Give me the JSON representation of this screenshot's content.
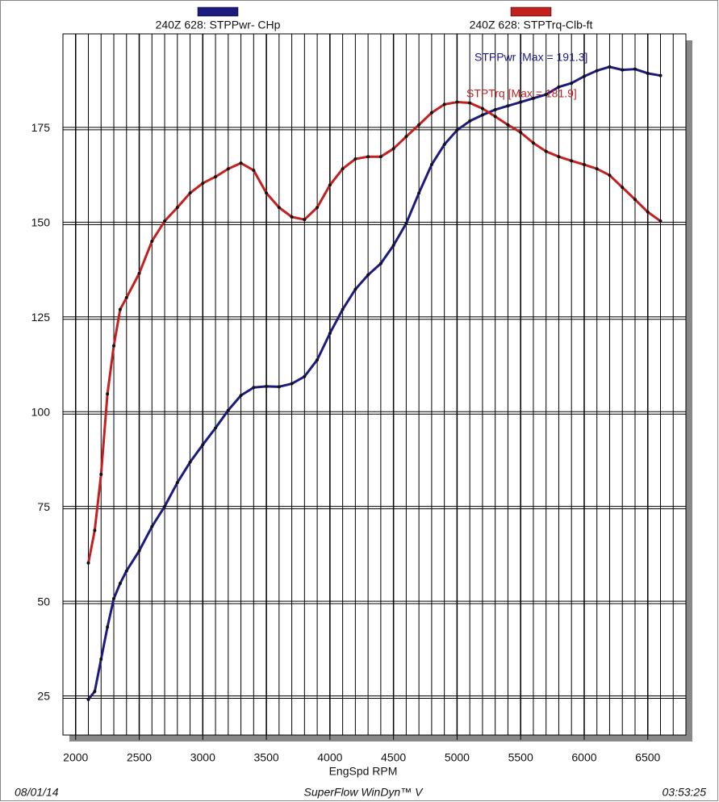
{
  "chart_data": {
    "type": "line",
    "x_label": "EngSpd  RPM",
    "xlim": [
      1900,
      6800
    ],
    "xticks": [
      2000,
      2500,
      3000,
      3500,
      4000,
      4500,
      5000,
      5500,
      6000,
      6500
    ],
    "x_grid_step": 100,
    "ylim": [
      15,
      200
    ],
    "yticks": [
      25,
      50,
      75,
      100,
      125,
      150,
      175
    ],
    "grid": true,
    "x": [
      2100,
      2150,
      2200,
      2250,
      2300,
      2350,
      2400,
      2500,
      2600,
      2700,
      2800,
      2900,
      3000,
      3100,
      3200,
      3300,
      3400,
      3500,
      3600,
      3700,
      3800,
      3900,
      4000,
      4100,
      4200,
      4300,
      4400,
      4500,
      4600,
      4700,
      4800,
      4900,
      5000,
      5100,
      5200,
      5300,
      5400,
      5500,
      5600,
      5700,
      5800,
      5900,
      6000,
      6100,
      6200,
      6300,
      6400,
      6500,
      6600
    ],
    "series": [
      {
        "name": "240Z 628: STPPwr- CHp",
        "color": "#1c1c80",
        "annotation": "STPPwr [Max = 191.3]",
        "values": [
          24.4,
          26.5,
          35,
          43.5,
          51,
          55,
          58.3,
          63.6,
          70,
          75.3,
          81.6,
          87,
          91.6,
          96,
          100.7,
          104.6,
          106.7,
          107,
          106.9,
          107.7,
          109.6,
          114,
          121,
          127.3,
          132.6,
          136.4,
          139.4,
          144.2,
          150,
          158,
          165.5,
          170.8,
          174.6,
          177,
          178.6,
          180,
          181,
          182,
          183,
          184,
          186,
          187,
          188.8,
          190.3,
          191.3,
          190.5,
          190.7,
          189.6,
          189
        ]
      },
      {
        "name": "240Z 628: STPTrq-Clb-ft",
        "color": "#c42020",
        "annotation": "STPTrq [Max = 181.9]",
        "values": [
          60.4,
          69,
          83.8,
          105,
          117.7,
          127.3,
          130.4,
          136.8,
          145.3,
          150.6,
          154.2,
          158,
          160.6,
          162.3,
          164.4,
          165.9,
          164,
          158,
          154.2,
          151.7,
          151,
          154.2,
          160.1,
          164.4,
          167,
          167.6,
          167.6,
          169.7,
          172.9,
          176,
          179.2,
          181.4,
          182,
          181.8,
          180.3,
          178.2,
          176,
          174,
          171.2,
          169,
          167.6,
          166.5,
          165.5,
          164.4,
          162.7,
          159.5,
          156.3,
          153,
          150.6
        ]
      }
    ],
    "footer": {
      "left": "08/01/14",
      "center": "SuperFlow WinDyn™ V",
      "right": "03:53:25"
    }
  }
}
